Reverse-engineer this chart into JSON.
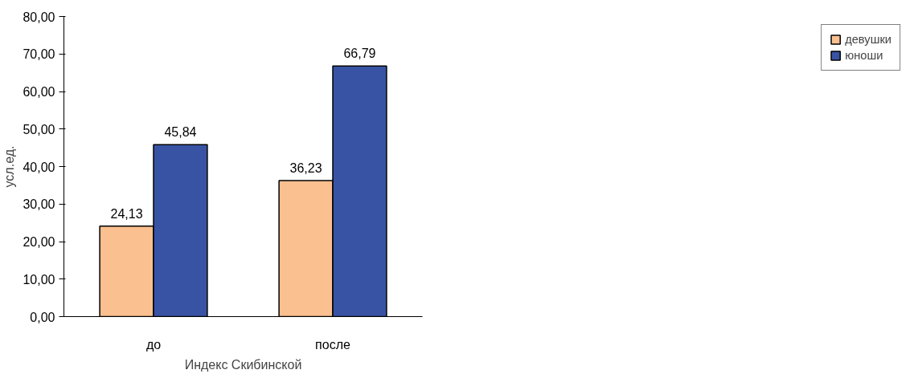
{
  "chart_data": {
    "type": "bar",
    "xlabel": "Индекс Скибинской",
    "ylabel": "усл.ед.",
    "categories": [
      "до",
      "после"
    ],
    "series": [
      {
        "name": "девушки",
        "color": "#fac090",
        "values": [
          24.13,
          36.23
        ],
        "value_labels": [
          "24,13",
          "36,23"
        ]
      },
      {
        "name": "юноши",
        "color": "#3953a4",
        "values": [
          45.84,
          66.79
        ],
        "value_labels": [
          "45,84",
          "66,79"
        ]
      }
    ],
    "ylim": [
      0,
      80
    ],
    "yticks": [
      {
        "value": 0,
        "label": "0,00"
      },
      {
        "value": 10,
        "label": "10,00"
      },
      {
        "value": 20,
        "label": "20,00"
      },
      {
        "value": 30,
        "label": "30,00"
      },
      {
        "value": 40,
        "label": "40,00"
      },
      {
        "value": 50,
        "label": "50,00"
      },
      {
        "value": 60,
        "label": "60,00"
      },
      {
        "value": 70,
        "label": "70,00"
      },
      {
        "value": 80,
        "label": "80,00"
      }
    ],
    "grid": false,
    "legend": "right"
  }
}
